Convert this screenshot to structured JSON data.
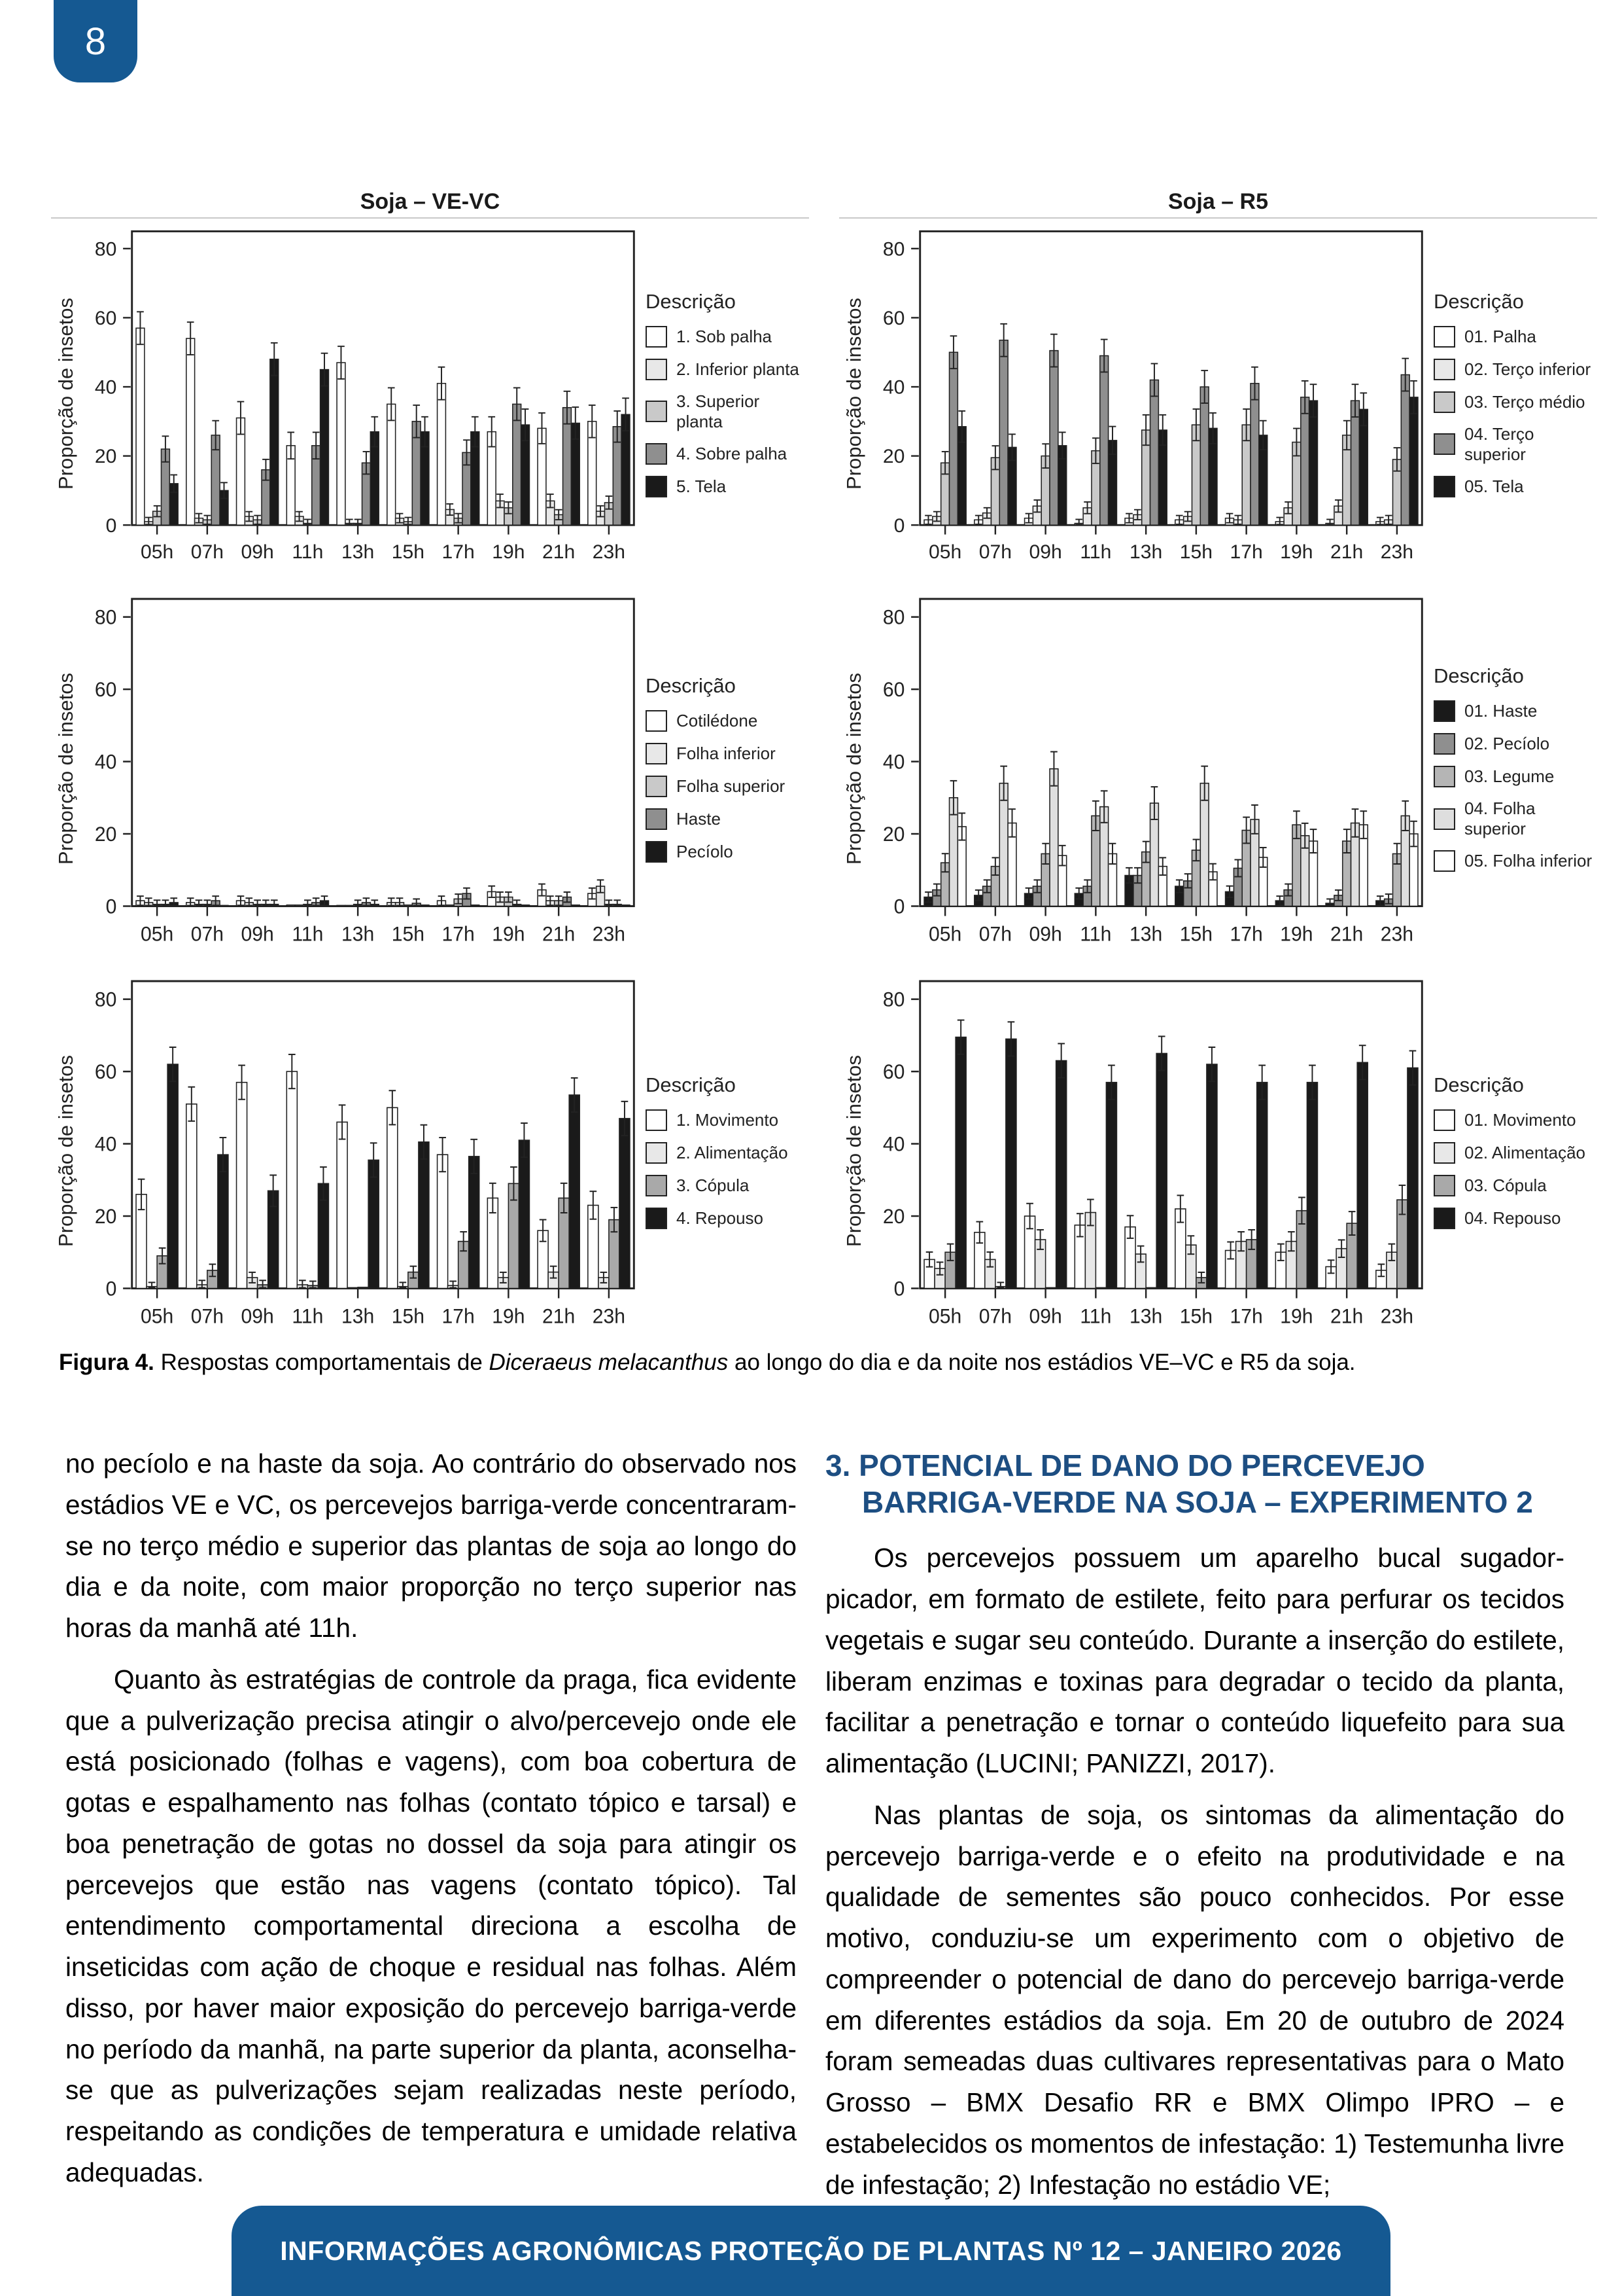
{
  "page": {
    "number": "8"
  },
  "figure": {
    "caption": {
      "label": "Figura 4.",
      "pre": " Respostas comportamentais de ",
      "italic": "Diceraeus melacanthus",
      "post": " ao longo do dia e da noite nos estádios VE–VC e R5 da soja."
    }
  },
  "chart_data": [
    {
      "type": "bar",
      "title": "Soja – VE-VC",
      "ylabel": "Proporção de insetos",
      "ylim": [
        0,
        85
      ],
      "yticks": [
        0,
        20,
        40,
        60,
        80
      ],
      "categories": [
        "05h",
        "07h",
        "09h",
        "11h",
        "13h",
        "15h",
        "17h",
        "19h",
        "21h",
        "23h"
      ],
      "legend_title": "Descrição",
      "legend_position": "right",
      "grid": false,
      "series": [
        {
          "name": "1. Sob palha",
          "color": "#ffffff",
          "values": [
            57,
            54,
            31,
            23,
            47,
            35,
            41,
            27,
            28,
            30
          ]
        },
        {
          "name": "2. Inferior planta",
          "color": "#e8e8e8",
          "values": [
            1,
            2,
            2.5,
            2.5,
            0.5,
            2,
            4.5,
            7,
            7,
            4
          ]
        },
        {
          "name": "3. Superior planta",
          "color": "#c9c9c9",
          "values": [
            4,
            1.5,
            1.5,
            0.5,
            0.5,
            1,
            2,
            5,
            3,
            6.5
          ]
        },
        {
          "name": "4. Sobre palha",
          "color": "#8f8f8f",
          "values": [
            22,
            26,
            16,
            23,
            18,
            30,
            21,
            35,
            34,
            28.5
          ]
        },
        {
          "name": "5. Tela",
          "color": "#1a1a1a",
          "values": [
            12,
            10,
            48,
            45,
            27,
            27,
            27,
            29,
            29.5,
            32
          ]
        }
      ]
    },
    {
      "type": "bar",
      "title": "Soja – R5",
      "ylabel": "Proporção de insetos",
      "ylim": [
        0,
        85
      ],
      "yticks": [
        0,
        20,
        40,
        60,
        80
      ],
      "categories": [
        "05h",
        "07h",
        "09h",
        "11h",
        "13h",
        "15h",
        "17h",
        "19h",
        "21h",
        "23h"
      ],
      "legend_title": "Descrição",
      "legend_position": "right",
      "grid": false,
      "series": [
        {
          "name": "01. Palha",
          "color": "#ffffff",
          "values": [
            1.5,
            1.5,
            2,
            0.5,
            2,
            1.5,
            2,
            1,
            0.5,
            1
          ]
        },
        {
          "name": "02. Terço inferior",
          "color": "#e8e8e8",
          "values": [
            2.5,
            3.5,
            5.5,
            5,
            3,
            2.5,
            1.5,
            5,
            5.5,
            1.5
          ]
        },
        {
          "name": "03. Terço médio",
          "color": "#c9c9c9",
          "values": [
            18,
            19.5,
            20,
            21.5,
            27.5,
            29,
            29,
            24,
            26,
            19
          ]
        },
        {
          "name": "04. Terço superior",
          "color": "#8f8f8f",
          "values": [
            50,
            53.5,
            50.5,
            49,
            42,
            40,
            41,
            37,
            36,
            43.5
          ]
        },
        {
          "name": "05. Tela",
          "color": "#1a1a1a",
          "values": [
            28.5,
            22.5,
            23,
            24.5,
            27.5,
            28,
            26,
            36,
            33.5,
            37
          ]
        }
      ]
    },
    {
      "type": "bar",
      "title": null,
      "ylabel": "Proporção de insetos",
      "ylim": [
        0,
        85
      ],
      "yticks": [
        0,
        20,
        40,
        60,
        80
      ],
      "categories": [
        "05h",
        "07h",
        "09h",
        "11h",
        "13h",
        "15h",
        "17h",
        "19h",
        "21h",
        "23h"
      ],
      "legend_title": "Descrição",
      "legend_position": "right",
      "grid": false,
      "series": [
        {
          "name": "Cotilédone",
          "color": "#ffffff",
          "values": [
            1.5,
            1,
            1.5,
            0.3,
            0.2,
            1,
            1.5,
            4,
            4.5,
            3.5
          ]
        },
        {
          "name": "Folha inferior",
          "color": "#e8e8e8",
          "values": [
            1,
            0.5,
            1,
            0.3,
            0.2,
            1,
            0.3,
            2.5,
            1.5,
            5.5
          ]
        },
        {
          "name": "Folha superior",
          "color": "#c9c9c9",
          "values": [
            0.5,
            0.5,
            0.5,
            0.5,
            0.5,
            0.3,
            2,
            2.5,
            1.5,
            0.5
          ]
        },
        {
          "name": "Haste",
          "color": "#8f8f8f",
          "values": [
            0.5,
            1.5,
            0.5,
            1,
            1,
            0.8,
            3.5,
            0.5,
            2.5,
            0.5
          ]
        },
        {
          "name": "Pecíolo",
          "color": "#1a1a1a",
          "values": [
            1,
            0.2,
            0.5,
            1.5,
            0.5,
            0.3,
            0.3,
            0.3,
            0.3,
            0.3
          ]
        }
      ]
    },
    {
      "type": "bar",
      "title": null,
      "ylabel": "Proporção de insetos",
      "ylim": [
        0,
        85
      ],
      "yticks": [
        0,
        20,
        40,
        60,
        80
      ],
      "categories": [
        "05h",
        "07h",
        "09h",
        "11h",
        "13h",
        "15h",
        "17h",
        "19h",
        "21h",
        "23h"
      ],
      "legend_title": "Descrição",
      "legend_position": "right",
      "grid": false,
      "series": [
        {
          "name": "01. Haste",
          "color": "#1a1a1a",
          "values": [
            2.5,
            3,
            3.5,
            3.5,
            8.5,
            5.5,
            4,
            1.5,
            0.8,
            1.5
          ]
        },
        {
          "name": "02. Pecíolo",
          "color": "#8f8f8f",
          "values": [
            4.5,
            5.5,
            5.5,
            5.5,
            8.5,
            7,
            10.5,
            4.5,
            3,
            2
          ]
        },
        {
          "name": "03. Legume",
          "color": "#b5b5b5",
          "values": [
            12,
            11,
            14.5,
            25,
            15,
            15.5,
            21,
            22.5,
            18,
            14.5
          ]
        },
        {
          "name": "04. Folha superior",
          "color": "#dedede",
          "values": [
            30,
            34,
            38,
            27.5,
            28.5,
            34,
            24,
            19.5,
            23,
            25
          ]
        },
        {
          "name": "05. Folha inferior",
          "color": "#ffffff",
          "values": [
            22,
            23,
            14,
            14.5,
            11,
            9.5,
            13.5,
            18,
            22.5,
            20
          ]
        }
      ]
    },
    {
      "type": "bar",
      "title": null,
      "ylabel": "Proporção de insetos",
      "ylim": [
        0,
        85
      ],
      "yticks": [
        0,
        20,
        40,
        60,
        80
      ],
      "categories": [
        "05h",
        "07h",
        "09h",
        "11h",
        "13h",
        "15h",
        "17h",
        "19h",
        "21h",
        "23h"
      ],
      "legend_title": "Descrição",
      "legend_position": "right",
      "grid": false,
      "series": [
        {
          "name": "1. Movimento",
          "color": "#ffffff",
          "values": [
            26,
            51,
            57,
            60,
            46,
            50,
            37,
            25,
            16,
            23
          ]
        },
        {
          "name": "2. Alimentação",
          "color": "#e8e8e8",
          "values": [
            0.5,
            1,
            3,
            1,
            0.2,
            0.5,
            0.8,
            3,
            4.5,
            3
          ]
        },
        {
          "name": "3. Cópula",
          "color": "#a9a9a9",
          "values": [
            9,
            5,
            1,
            0.8,
            0.3,
            4.5,
            13,
            29,
            25,
            19
          ]
        },
        {
          "name": "4. Repouso",
          "color": "#1a1a1a",
          "values": [
            62,
            37,
            27,
            29,
            35.5,
            40.5,
            36.5,
            41,
            53.5,
            47
          ]
        }
      ]
    },
    {
      "type": "bar",
      "title": null,
      "ylabel": "Proporção de insetos",
      "ylim": [
        0,
        85
      ],
      "yticks": [
        0,
        20,
        40,
        60,
        80
      ],
      "categories": [
        "05h",
        "07h",
        "09h",
        "11h",
        "13h",
        "15h",
        "17h",
        "19h",
        "21h",
        "23h"
      ],
      "legend_title": "Descrição",
      "legend_position": "right",
      "grid": false,
      "series": [
        {
          "name": "01. Movimento",
          "color": "#ffffff",
          "values": [
            8,
            15.5,
            20,
            17.5,
            17,
            22,
            10.5,
            10,
            6,
            5
          ]
        },
        {
          "name": "02. Alimentação",
          "color": "#e8e8e8",
          "values": [
            5.5,
            8,
            13.5,
            21,
            9.5,
            12,
            13,
            13,
            11,
            10
          ]
        },
        {
          "name": "03. Cópula",
          "color": "#a9a9a9",
          "values": [
            10,
            0.5,
            0.2,
            0.2,
            0.2,
            3,
            13.5,
            21.5,
            18,
            24.5
          ]
        },
        {
          "name": "04. Repouso",
          "color": "#1a1a1a",
          "values": [
            69.5,
            69,
            63,
            57,
            65,
            62,
            57,
            57,
            62.5,
            61
          ]
        }
      ]
    }
  ],
  "body": {
    "left": {
      "p1": "no pecíolo e na haste da soja. Ao contrário do observado nos estádios VE e VC, os percevejos barriga-verde concentraram-se no terço médio e superior das plantas de soja ao longo do dia e da noite, com maior proporção no terço superior nas horas da manhã até 11h.",
      "p2": "Quanto às estratégias de controle da praga, fica evidente que a pulverização precisa atingir o alvo/percevejo onde ele está posicionado (folhas e vagens), com boa cobertura de gotas e espalhamento nas folhas (contato tópico e tarsal) e boa penetração de gotas no dossel da soja para atingir os percevejos que estão nas vagens (contato tópico). Tal entendimento comportamental direciona a escolha de inseticidas com ação de choque e residual nas folhas. Além disso, por haver maior exposição do percevejo barriga-verde no período da manhã, na parte superior da planta, aconselha-se que as pulverizações sejam realizadas neste período, respeitando as condições de temperatura e umidade relativa adequadas."
    },
    "right": {
      "heading_line1": "3. POTENCIAL DE DANO DO PERCEVEJO",
      "heading_line2": "BARRIGA-VERDE NA SOJA – EXPERIMENTO 2",
      "p1": "Os percevejos possuem um aparelho bucal sugador-picador, em formato de estilete, feito para perfurar os tecidos vegetais e sugar seu conteúdo. Durante a inserção do estilete, liberam enzimas e toxinas para degradar o tecido da planta, facilitar a penetração e tornar o conteúdo liquefeito para sua alimentação (LUCINI; PANIZZI, 2017).",
      "p2": "Nas plantas de soja, os sintomas da alimentação do percevejo barriga-verde e o efeito na produtividade e na qualidade de sementes são pouco conhecidos. Por esse motivo, conduziu-se um experimento com o objetivo de compreender o potencial de dano do percevejo barriga-verde em diferentes estádios da soja. Em 20 de outubro de 2024 foram semeadas duas cultivares representativas para o Mato Grosso – BMX Desafio RR e BMX Olimpo IPRO – e estabelecidos os momentos de infestação: 1) Testemunha livre de infestação; 2) Infestação no estádio VE;"
    }
  },
  "footer": {
    "text": "INFORMAÇÕES AGRONÔMICAS PROTEÇÃO DE PLANTAS Nº 12 – JANEIRO 2026"
  },
  "colors": {
    "brand_blue": "#155992",
    "heading_blue": "#1d4e82",
    "axis": "#222222",
    "title_rule": "#c9c9c9"
  }
}
